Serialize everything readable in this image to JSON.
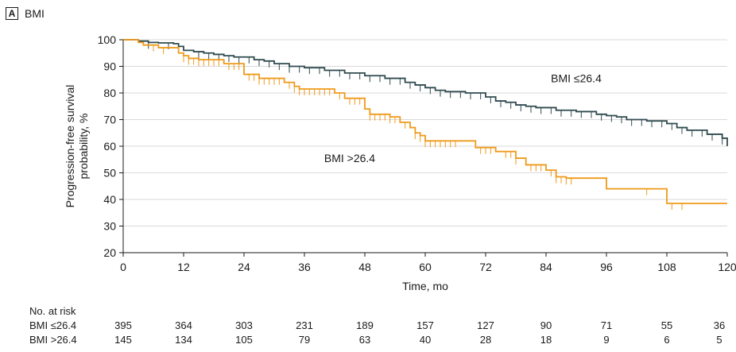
{
  "panel": {
    "letter": "A",
    "title": "BMI"
  },
  "colors": {
    "group1": "#2f4a4f",
    "group2": "#ef9a1a",
    "axis": "#1a1a1a",
    "grid": "#d9d9d9"
  },
  "chart_data": {
    "type": "line",
    "subtype": "kaplan-meier step",
    "xlabel": "Time, mo",
    "ylabel": "Progression-free survival probability, %",
    "xlim": [
      0,
      120
    ],
    "ylim": [
      20,
      100
    ],
    "xticks": [
      0,
      12,
      24,
      36,
      48,
      60,
      72,
      84,
      96,
      108,
      120
    ],
    "yticks": [
      20,
      30,
      40,
      50,
      60,
      70,
      80,
      90,
      100
    ],
    "grid": "horizontal",
    "series": [
      {
        "name": "BMI ≤26.4",
        "color": "#2f4a4f",
        "x": [
          0,
          3,
          5,
          7,
          10,
          11,
          12,
          14,
          16,
          18,
          20,
          22,
          26,
          28,
          30,
          33,
          36,
          40,
          44,
          48,
          52,
          56,
          58,
          60,
          62,
          64,
          68,
          72,
          74,
          76,
          78,
          80,
          82,
          86,
          90,
          94,
          96,
          98,
          100,
          104,
          108,
          110,
          112,
          116,
          119,
          120
        ],
        "y": [
          100,
          99.5,
          99,
          98.8,
          98.5,
          97.5,
          96,
          95.5,
          95,
          94.5,
          94,
          93.5,
          92.5,
          92,
          91,
          90,
          89.5,
          88.5,
          87.5,
          86.5,
          85.5,
          84,
          83,
          82,
          81,
          80.5,
          80,
          78.5,
          77,
          76.5,
          75.5,
          75,
          74.5,
          73.5,
          73,
          72,
          71.5,
          71,
          70,
          69.5,
          68.5,
          67,
          66,
          64.5,
          63,
          60
        ],
        "censor_x": [
          5,
          9,
          15,
          17,
          19,
          21,
          23,
          25,
          27,
          29,
          31,
          33,
          35,
          37,
          39,
          41,
          43,
          45,
          47,
          49,
          51,
          53,
          55,
          57,
          59,
          61,
          63,
          65,
          67,
          69,
          71,
          73,
          75,
          77,
          79,
          81,
          83,
          85,
          87,
          89,
          91,
          93,
          95,
          97,
          99,
          101,
          103,
          105,
          107,
          109,
          111,
          113,
          115,
          117,
          119
        ]
      },
      {
        "name": "BMI >26.4",
        "color": "#ef9a1a",
        "x": [
          0,
          3,
          4,
          7,
          11,
          12,
          13,
          15,
          20,
          24,
          27,
          32,
          34,
          35,
          38,
          42,
          44,
          48,
          49,
          53,
          55,
          57,
          58,
          59,
          60,
          61,
          70,
          74,
          78,
          80,
          84,
          86,
          88,
          96,
          108,
          111,
          120
        ],
        "y": [
          100,
          99,
          98,
          97,
          95,
          94,
          93,
          92.5,
          91,
          87,
          85.5,
          84,
          82.5,
          81.5,
          81.5,
          80,
          78,
          74,
          72,
          71,
          69,
          67,
          65,
          64,
          62,
          62,
          59.5,
          58,
          55.5,
          53,
          51,
          48.5,
          48,
          44,
          38.5,
          38.5,
          38.5
        ],
        "censor_x": [
          6,
          8,
          12,
          13,
          14,
          15,
          16,
          17,
          18,
          19,
          21,
          22,
          23,
          25,
          26,
          27,
          28,
          29,
          30,
          31,
          33,
          34,
          35,
          36,
          37,
          38,
          39,
          40,
          41,
          43,
          45,
          46,
          47,
          49,
          50,
          51,
          52,
          53,
          54,
          56,
          58,
          59,
          60,
          61,
          62,
          63,
          64,
          65,
          66,
          71,
          72,
          73,
          76,
          77,
          78,
          81,
          82,
          83,
          85,
          86,
          87,
          88,
          89,
          104,
          109,
          111
        ]
      }
    ],
    "annotations": [
      {
        "text": "BMI ≤26.4",
        "x": 90,
        "y": 84
      },
      {
        "text": "BMI >26.4",
        "x": 45,
        "y": 54
      }
    ]
  },
  "risk_table": {
    "header": "No. at risk",
    "rows": [
      {
        "label": "BMI ≤26.4",
        "values": [
          "395",
          "364",
          "303",
          "231",
          "189",
          "157",
          "127",
          "90",
          "71",
          "55",
          "36"
        ]
      },
      {
        "label": "BMI >26.4",
        "values": [
          "145",
          "134",
          "105",
          "79",
          "63",
          "40",
          "28",
          "18",
          "9",
          "6",
          "5"
        ]
      }
    ]
  }
}
